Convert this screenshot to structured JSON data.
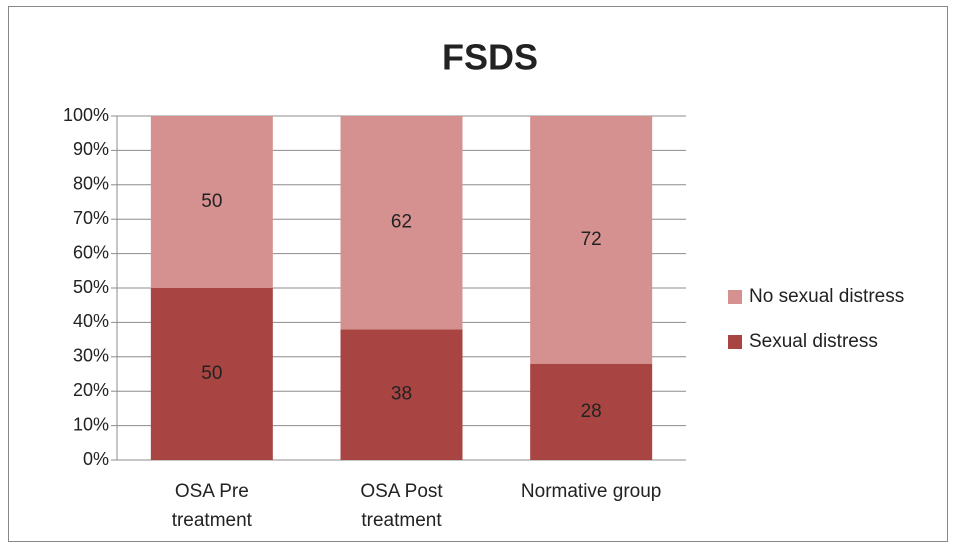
{
  "chart_data": {
    "type": "stacked_bar",
    "title": "FSDS",
    "categories": [
      "OSA Pre treatment",
      "OSA Post treatment",
      "Normative group"
    ],
    "series": [
      {
        "name": "Sexual distress",
        "color": "#a84542",
        "values": [
          50,
          38,
          28
        ]
      },
      {
        "name": "No sexual distress",
        "color": "#d5918f",
        "values": [
          50,
          62,
          72
        ]
      }
    ],
    "ylim": [
      0,
      100
    ],
    "yticks": [
      {
        "value": 0,
        "label": "0%"
      },
      {
        "value": 10,
        "label": "10%"
      },
      {
        "value": 20,
        "label": "20%"
      },
      {
        "value": 30,
        "label": "30%"
      },
      {
        "value": 40,
        "label": "40%"
      },
      {
        "value": 50,
        "label": "50%"
      },
      {
        "value": 60,
        "label": "60%"
      },
      {
        "value": 70,
        "label": "70%"
      },
      {
        "value": 80,
        "label": "80%"
      },
      {
        "value": 90,
        "label": "90%"
      },
      {
        "value": 100,
        "label": "100%"
      }
    ],
    "grid": true,
    "legend": "right"
  }
}
